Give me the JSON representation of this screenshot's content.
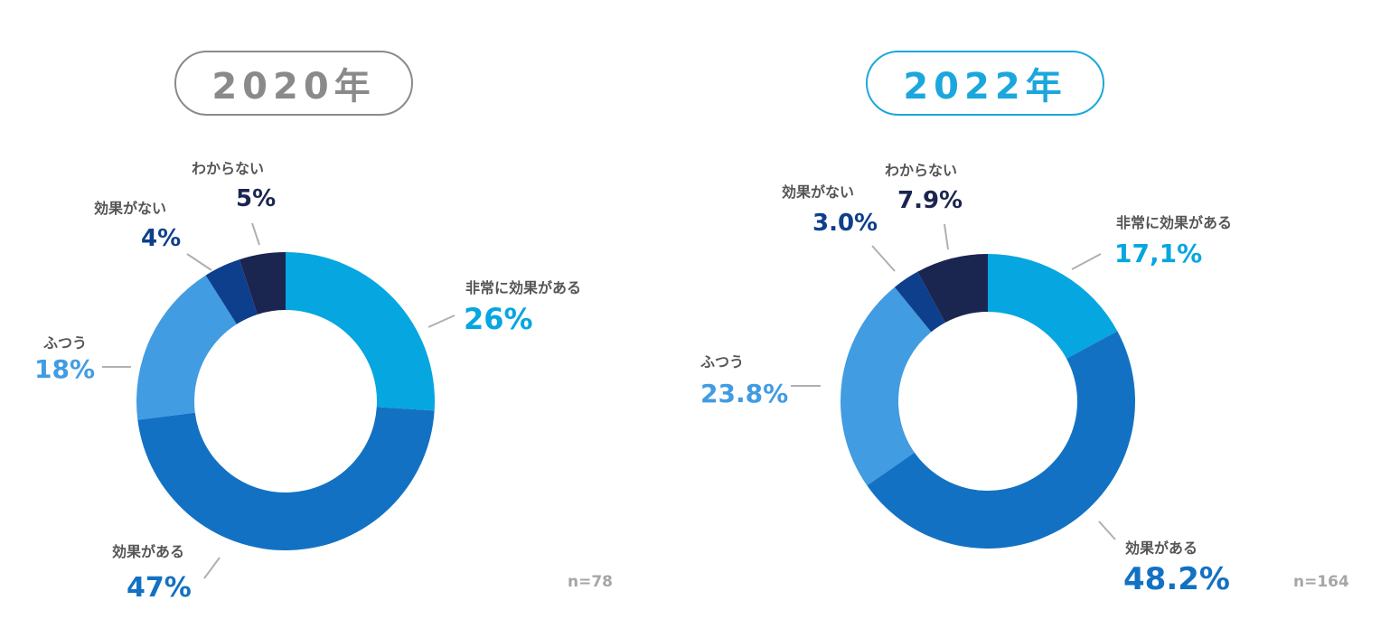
{
  "panels": [
    {
      "year_label": "2020年",
      "sample_label": "n=78"
    },
    {
      "year_label": "2022年",
      "sample_label": "n=164"
    }
  ],
  "chart_data": [
    {
      "type": "pie",
      "title": "2020年",
      "note": "n=78",
      "labels": [
        "非常に効果がある",
        "効果がある",
        "ふつう",
        "効果がない",
        "わからない"
      ],
      "values": [
        26,
        47,
        18,
        4,
        5
      ],
      "value_labels": [
        "26%",
        "47%",
        "18%",
        "4%",
        "5%"
      ],
      "colors": [
        "#06a6e0",
        "#1371c3",
        "#419ce1",
        "#0e3f8d",
        "#1a2550"
      ],
      "donut": true
    },
    {
      "type": "pie",
      "title": "2022年",
      "note": "n=164",
      "labels": [
        "非常に効果がある",
        "効果がある",
        "ふつう",
        "効果がない",
        "わからない"
      ],
      "values": [
        17.1,
        48.2,
        23.8,
        3.0,
        7.9
      ],
      "value_labels": [
        "17,1%",
        "48.2%",
        "23.8%",
        "3.0%",
        "7.9%"
      ],
      "colors": [
        "#06a6e0",
        "#1371c3",
        "#419ce1",
        "#0e3f8d",
        "#1a2550"
      ],
      "donut": true
    }
  ]
}
